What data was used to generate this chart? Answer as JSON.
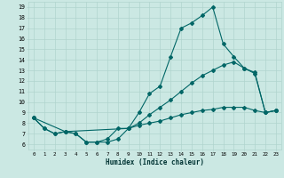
{
  "xlabel": "Humidex (Indice chaleur)",
  "bg_color": "#cbe8e3",
  "grid_color": "#b0d4ce",
  "line_color": "#006666",
  "xlim": [
    -0.5,
    23.5
  ],
  "ylim": [
    5.5,
    19.5
  ],
  "yticks": [
    6,
    7,
    8,
    9,
    10,
    11,
    12,
    13,
    14,
    15,
    16,
    17,
    18,
    19
  ],
  "xticks": [
    0,
    1,
    2,
    3,
    4,
    5,
    6,
    7,
    8,
    9,
    10,
    11,
    12,
    13,
    14,
    15,
    16,
    17,
    18,
    19,
    20,
    21,
    22,
    23
  ],
  "line1_x": [
    0,
    1,
    2,
    3,
    4,
    5,
    6,
    7,
    8,
    9,
    10,
    11,
    12,
    13,
    14,
    15,
    16,
    17,
    18,
    19,
    20,
    21,
    22,
    23
  ],
  "line1_y": [
    8.5,
    7.5,
    7.0,
    7.2,
    7.0,
    6.2,
    6.2,
    6.2,
    6.5,
    7.5,
    9.0,
    10.8,
    11.5,
    14.3,
    17.0,
    17.5,
    18.2,
    19.0,
    15.5,
    14.3,
    13.2,
    12.7,
    9.0,
    9.2
  ],
  "line2_x": [
    0,
    3,
    9,
    10,
    11,
    12,
    13,
    14,
    15,
    16,
    17,
    18,
    19,
    20,
    21,
    22,
    23
  ],
  "line2_y": [
    8.5,
    7.2,
    7.5,
    8.0,
    8.8,
    9.5,
    10.2,
    11.0,
    11.8,
    12.5,
    13.0,
    13.5,
    13.8,
    13.2,
    12.8,
    9.0,
    9.2
  ],
  "line3_x": [
    0,
    1,
    2,
    3,
    4,
    5,
    6,
    7,
    8,
    9,
    10,
    11,
    12,
    13,
    14,
    15,
    16,
    17,
    18,
    19,
    20,
    21,
    22,
    23
  ],
  "line3_y": [
    8.5,
    7.5,
    7.0,
    7.2,
    7.0,
    6.2,
    6.2,
    6.5,
    7.5,
    7.5,
    7.8,
    8.0,
    8.2,
    8.5,
    8.8,
    9.0,
    9.2,
    9.3,
    9.5,
    9.5,
    9.5,
    9.2,
    9.0,
    9.2
  ]
}
